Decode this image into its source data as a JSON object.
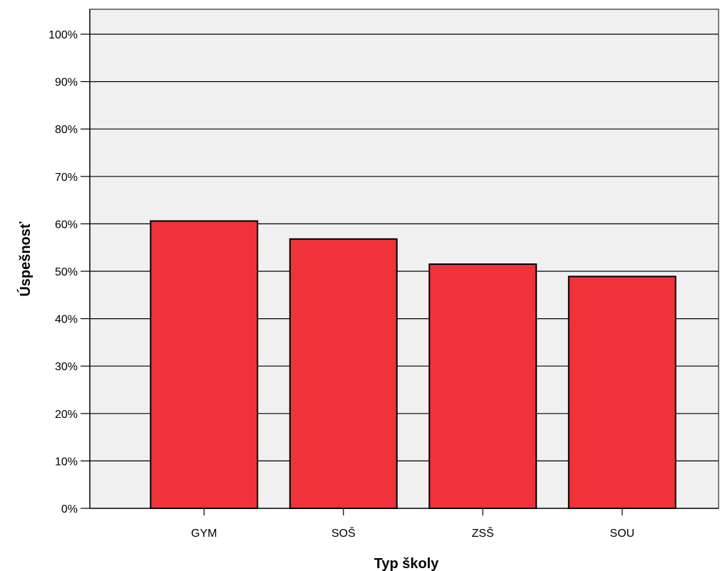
{
  "chart_data": {
    "type": "bar",
    "title": "",
    "xlabel": "Typ školy",
    "ylabel": "Úspešnosť",
    "categories": [
      "GYM",
      "SOŠ",
      "ZSŠ",
      "SOU"
    ],
    "values": [
      60.6,
      56.8,
      51.5,
      48.9
    ],
    "ylim": [
      0,
      100
    ],
    "y_ticks": [
      "0%",
      "10%",
      "20%",
      "30%",
      "40%",
      "50%",
      "60%",
      "70%",
      "80%",
      "90%",
      "100%"
    ],
    "grid": true,
    "legend": "none",
    "colors": {
      "bar_fill": "#f0323a",
      "bar_stroke": "#000000",
      "plot_background": "#f0f0f0",
      "gridline": "#000000"
    }
  }
}
